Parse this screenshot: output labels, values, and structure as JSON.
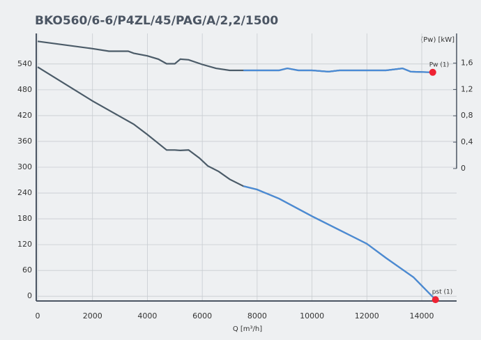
{
  "chart_data": {
    "type": "line",
    "title": "BKO560/6-6/P4ZL/45/PAG/A/2,2/1500",
    "xlabel": "Q [m³/h]",
    "y2label": "(Pw) [kW]",
    "xlim": [
      0,
      15270
    ],
    "xticks": [
      0,
      2000,
      4000,
      6000,
      8000,
      10000,
      12000,
      14000
    ],
    "ylim": [
      -11,
      611
    ],
    "yticks": [
      0,
      60,
      120,
      180,
      240,
      300,
      360,
      420,
      480,
      540
    ],
    "y2lim": [
      -2.01,
      2.05
    ],
    "y2ticks": [
      0,
      {
        "value": 0.4,
        "label": "0,4"
      },
      {
        "value": 0.8,
        "label": "0,8"
      },
      {
        "value": 1.2,
        "label": "1,2"
      },
      {
        "value": 1.6,
        "label": "1,6"
      }
    ],
    "grid": true,
    "highlight_from": 7500,
    "series": [
      {
        "name": "pst (1)",
        "color": "#4b5b68",
        "highlight_color": "#4a8bd6",
        "end_color": "#ee2233",
        "x": [
          0,
          2000,
          3500,
          4000,
          4700,
          5000,
          5200,
          5500,
          5900,
          6200,
          6600,
          7000,
          7500,
          8000,
          8800,
          10000,
          11000,
          12000,
          12700,
          13700,
          14500
        ],
        "values": [
          533,
          454,
          400,
          376,
          340,
          340,
          339,
          340,
          321,
          303,
          290,
          272,
          256,
          248,
          227,
          186,
          154,
          122,
          89,
          44,
          -8
        ]
      },
      {
        "name": "Pw (1)",
        "axis": "y2",
        "color": "#4b5b68",
        "highlight_color": "#4a8bd6",
        "end_color": "#ee2233",
        "x": [
          0,
          2000,
          2600,
          3300,
          3500,
          4000,
          4400,
          4700,
          5000,
          5200,
          5500,
          6000,
          6500,
          7000,
          7500,
          8000,
          8800,
          9100,
          9500,
          10000,
          10600,
          11000,
          12000,
          12700,
          13300,
          13600,
          14400
        ],
        "values": [
          1.93,
          1.82,
          1.78,
          1.78,
          1.75,
          1.71,
          1.66,
          1.59,
          1.59,
          1.66,
          1.65,
          1.58,
          1.52,
          1.49,
          1.49,
          1.49,
          1.49,
          1.52,
          1.49,
          1.49,
          1.47,
          1.49,
          1.49,
          1.49,
          1.52,
          1.47,
          1.46
        ]
      }
    ]
  }
}
